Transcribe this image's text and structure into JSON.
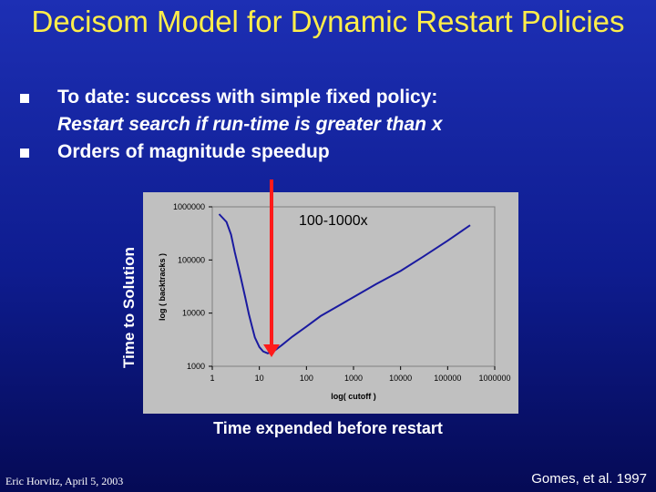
{
  "slide": {
    "title": "Decisom Model for Dynamic Restart Policies",
    "bullets": [
      {
        "line1": "To date: success with simple fixed policy:",
        "line2": "Restart search if run-time is greater than x"
      },
      {
        "line1": "Orders of magnitude speedup"
      }
    ],
    "outer_ylabel": "Time to Solution",
    "outer_xlabel": "Time expended before restart",
    "annotation": "100-1000x",
    "footer_left": "Eric Horvitz, April 5, 2003",
    "footer_right": "Gomes, et al. 1997"
  },
  "chart_data": {
    "type": "line",
    "xscale": "log",
    "yscale": "log",
    "xlabel": "log( cutoff )",
    "ylabel": "log ( backtracks )",
    "x_ticks": [
      "1",
      "10",
      "100",
      "1000",
      "10000",
      "100000",
      "1000000"
    ],
    "y_ticks": [
      "1000",
      "10000",
      "100000",
      "1000000"
    ],
    "xlim": [
      1,
      1000000
    ],
    "ylim": [
      1000,
      1000000
    ],
    "grid": false,
    "series": [
      {
        "color": "#1a1aa0",
        "x": [
          1.4,
          2.0,
          2.5,
          3,
          4,
          5,
          6,
          7,
          8,
          10,
          12,
          15,
          20,
          30,
          50,
          100,
          200,
          500,
          1000,
          3000,
          10000,
          30000,
          100000,
          300000
        ],
        "y": [
          730000,
          520000,
          300000,
          140000,
          48000,
          20000,
          9500,
          5500,
          3500,
          2300,
          1900,
          1750,
          1900,
          2500,
          3600,
          5600,
          8800,
          14000,
          20000,
          35000,
          62000,
          115000,
          230000,
          450000
        ]
      }
    ]
  },
  "colors": {
    "background": "#1226a0",
    "title": "#ffee4a",
    "arrow": "#ff1a1a",
    "panel": "#c0c0c0",
    "curve": "#1a1aa0"
  }
}
